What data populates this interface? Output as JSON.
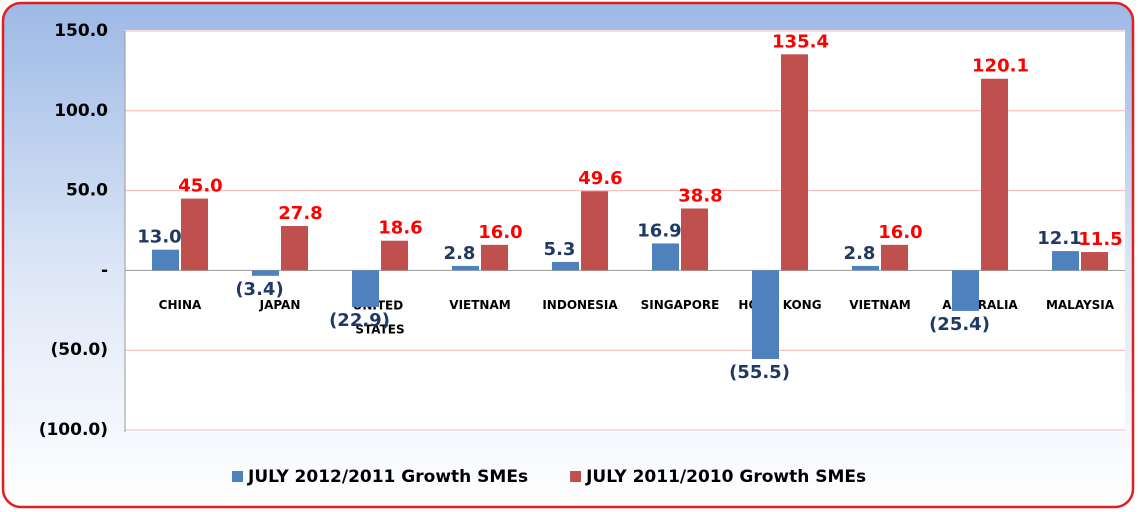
{
  "chart_data": {
    "type": "bar",
    "categories": [
      "CHINA",
      "JAPAN",
      "UNITED STATES",
      "VIETNAM",
      "INDONESIA",
      "SINGAPORE",
      "HONG KONG",
      "VIETNAM",
      "AUSTRALIA",
      "MALAYSIA"
    ],
    "series": [
      {
        "name": "JULY 2012/2011 Growth SMEs",
        "color": "#4f81bd",
        "label_color": "#1f3864",
        "values": [
          13.0,
          -3.4,
          -22.9,
          2.8,
          5.3,
          16.9,
          -55.5,
          2.8,
          -25.4,
          12.1
        ],
        "value_labels": [
          "13.0",
          "(3.4)",
          "(22.9)",
          "2.8",
          "5.3",
          "16.9",
          "(55.5)",
          "2.8",
          "(25.4)",
          "12.1"
        ]
      },
      {
        "name": "JULY 2011/2010 Growth SMEs",
        "color": "#c0504d",
        "label_color": "#ff0000",
        "values": [
          45.0,
          27.8,
          18.6,
          16.0,
          49.6,
          38.8,
          135.4,
          16.0,
          120.1,
          11.5
        ],
        "value_labels": [
          "45.0",
          "27.8",
          "18.6",
          "16.0",
          "49.6",
          "38.8",
          "135.4",
          "16.0",
          "120.1",
          "11.5"
        ]
      }
    ],
    "ylim": [
      -100,
      150
    ],
    "yticks": [
      {
        "value": 150,
        "label": "150.0"
      },
      {
        "value": 100,
        "label": "100.0"
      },
      {
        "value": 50,
        "label": "50.0"
      },
      {
        "value": 0,
        "label": "-"
      },
      {
        "value": -50,
        "label": "(50.0)"
      },
      {
        "value": -100,
        "label": "(100.0)"
      }
    ],
    "grid": true,
    "legend": "bottom"
  }
}
